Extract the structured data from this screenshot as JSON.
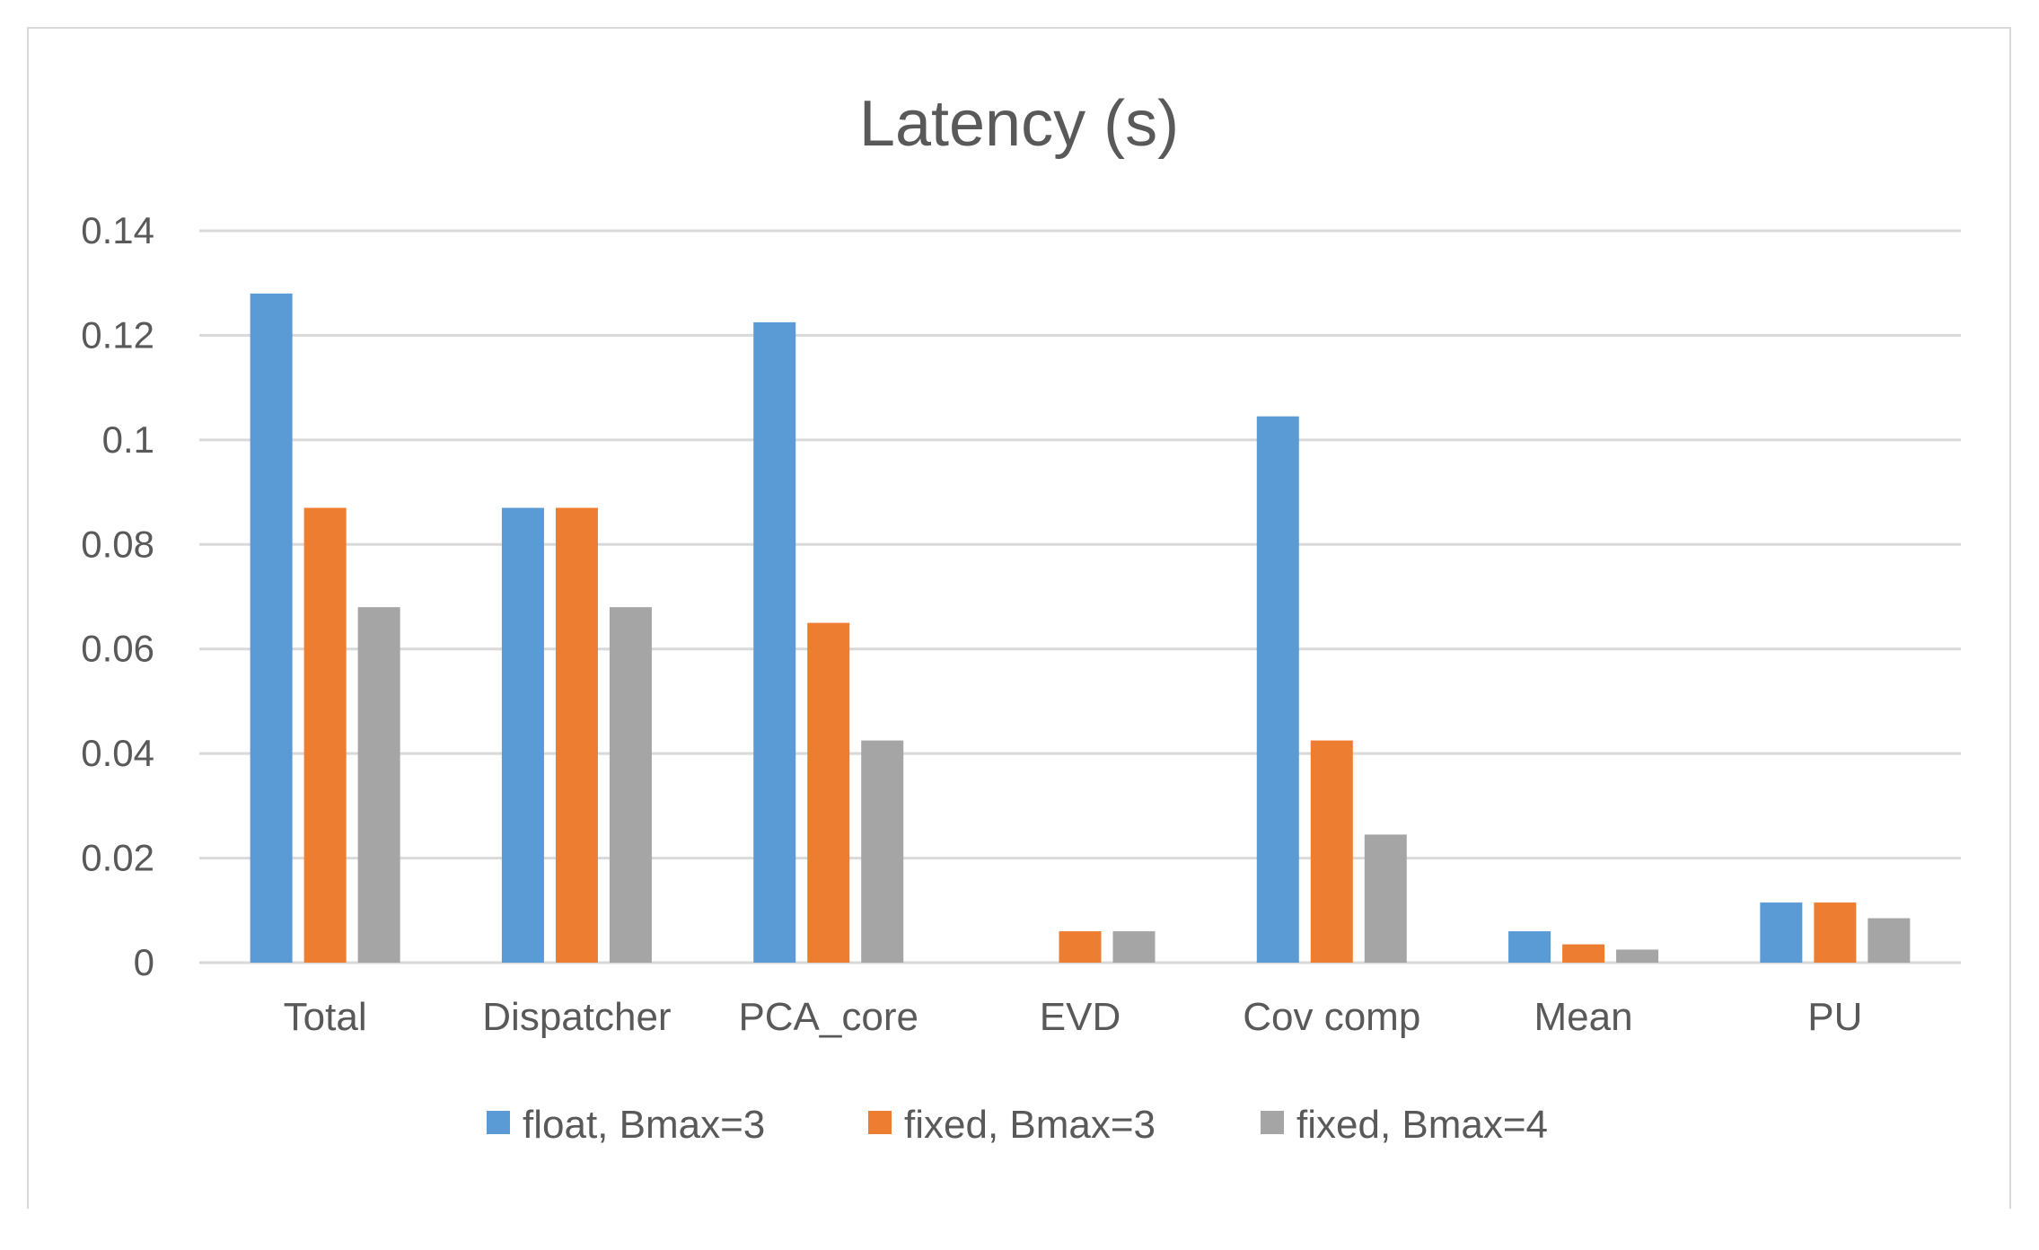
{
  "chart_data": {
    "type": "bar",
    "title": "Latency (s)",
    "xlabel": "",
    "ylabel": "",
    "ylim": [
      0,
      0.14
    ],
    "yticks": [
      "0",
      "0.02",
      "0.04",
      "0.06",
      "0.08",
      "0.1",
      "0.12",
      "0.14"
    ],
    "grid": true,
    "legend_position": "bottom",
    "categories": [
      "Total",
      "Dispatcher",
      "PCA_core",
      "EVD",
      "Cov comp",
      "Mean",
      "PU"
    ],
    "series": [
      {
        "name": "float, Bmax=3",
        "color": "#5b9bd5",
        "values": [
          0.128,
          0.087,
          0.1225,
          0,
          0.1045,
          0.006,
          0.0115
        ]
      },
      {
        "name": "fixed, Bmax=3",
        "color": "#ed7d31",
        "values": [
          0.087,
          0.087,
          0.065,
          0.006,
          0.0425,
          0.0035,
          0.0115
        ]
      },
      {
        "name": "fixed, Bmax=4",
        "color": "#a5a5a5",
        "values": [
          0.068,
          0.068,
          0.0425,
          0.006,
          0.0245,
          0.0025,
          0.0085
        ]
      }
    ]
  }
}
